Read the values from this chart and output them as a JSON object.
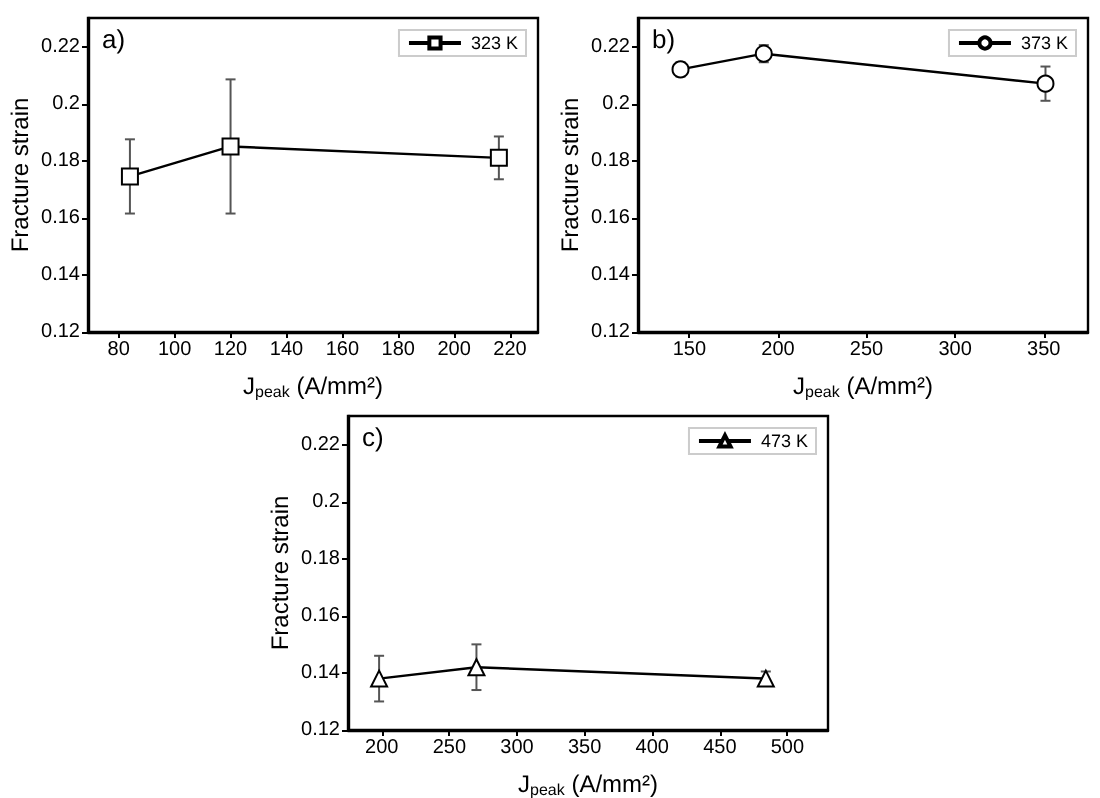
{
  "chart_data": [
    {
      "type": "line",
      "annotations": [
        "a)"
      ],
      "xlabel": "J$_{peak}$ (A/mm²)",
      "ylabel": "Fracture strain",
      "x": [
        84,
        120,
        216
      ],
      "xlim": [
        69,
        230
      ],
      "xticks": [
        80,
        100,
        120,
        140,
        160,
        180,
        200,
        220
      ],
      "ylim": [
        0.12,
        0.23
      ],
      "yticks": [
        0.12,
        0.14,
        0.16,
        0.18,
        0.2,
        0.22
      ],
      "marker": "square",
      "legend": "top right",
      "series": [
        {
          "name": "323 K",
          "color": "#000000",
          "values": [
            0.1745,
            0.185,
            0.181
          ],
          "errors": [
            0.013,
            0.0235,
            0.0075
          ]
        }
      ]
    },
    {
      "type": "line",
      "annotations": [
        "b)"
      ],
      "xlabel": "J$_{peak}$ (A/mm²)",
      "ylabel": "Fracture strain",
      "x": [
        145,
        192,
        351
      ],
      "xlim": [
        121,
        375
      ],
      "xticks": [
        150,
        200,
        250,
        300,
        350
      ],
      "ylim": [
        0.12,
        0.23
      ],
      "yticks": [
        0.12,
        0.14,
        0.16,
        0.18,
        0.2,
        0.22
      ],
      "marker": "circle",
      "legend": "top right",
      "series": [
        {
          "name": "373 K",
          "color": "#000000",
          "values": [
            0.212,
            0.2175,
            0.207
          ],
          "errors": [
            0.0025,
            0.003,
            0.006
          ]
        }
      ]
    },
    {
      "type": "line",
      "annotations": [
        "c)"
      ],
      "xlabel": "J$_{peak}$ (A/mm²)",
      "ylabel": "Fracture strain",
      "x": [
        198,
        270,
        484
      ],
      "xlim": [
        175,
        530
      ],
      "xticks": [
        200,
        250,
        300,
        350,
        400,
        450,
        500
      ],
      "ylim": [
        0.12,
        0.23
      ],
      "yticks": [
        0.12,
        0.14,
        0.16,
        0.18,
        0.2,
        0.22
      ],
      "marker": "triangle",
      "legend": "top right",
      "series": [
        {
          "name": "473 K",
          "color": "#000000",
          "values": [
            0.138,
            0.142,
            0.138
          ],
          "errors": [
            0.008,
            0.008,
            0.0025
          ]
        }
      ]
    }
  ]
}
